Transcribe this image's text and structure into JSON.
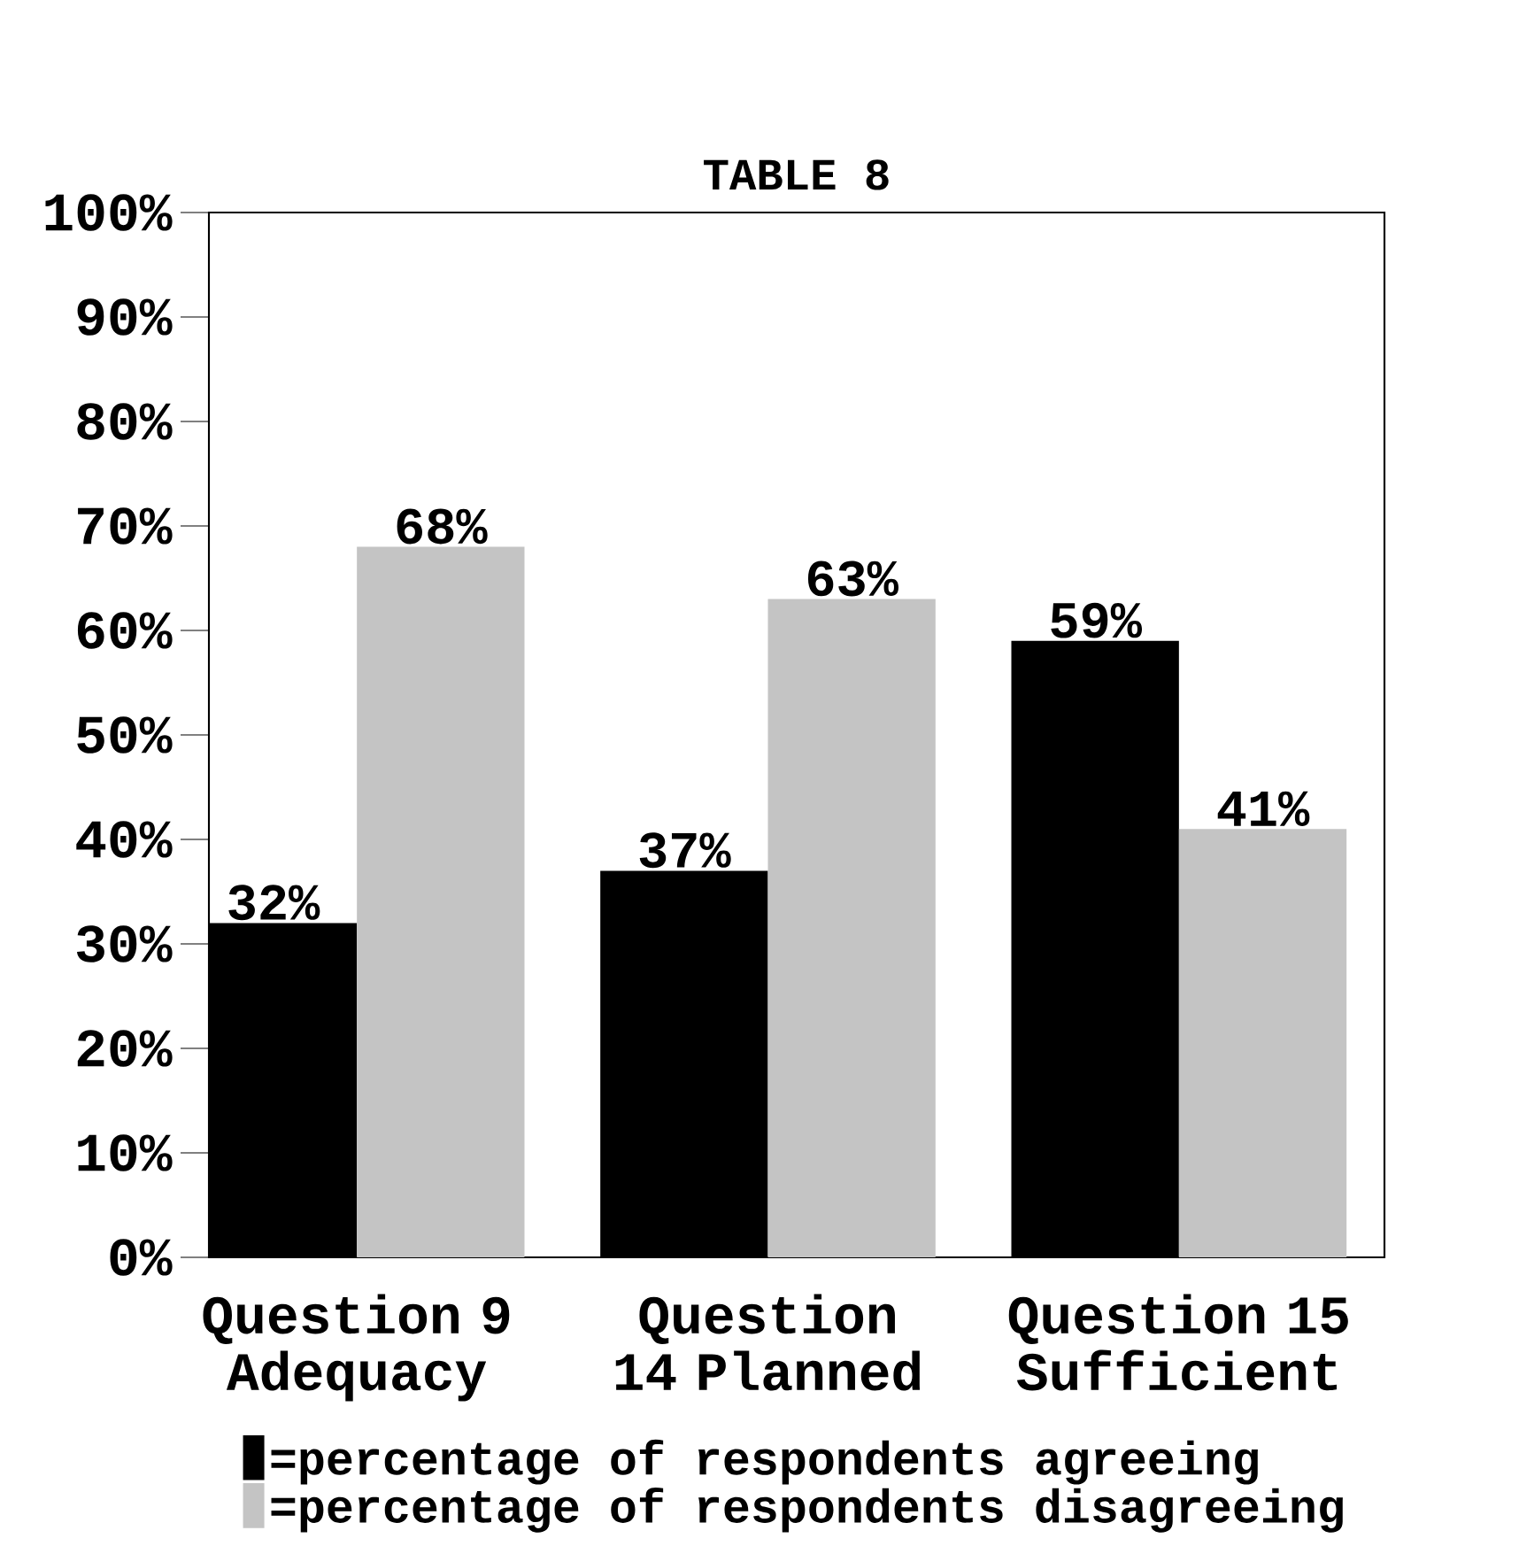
{
  "chart_data": {
    "type": "bar",
    "title": "TABLE 8",
    "categories": [
      "Question 9 Adequacy",
      "Question 14 Planned",
      "Question 15 Sufficient"
    ],
    "series": [
      {
        "name": "=percentage of respondents agreeing",
        "color": "#000000",
        "values": [
          32,
          37,
          59
        ],
        "value_labels": [
          "32%",
          "37%",
          "59%"
        ]
      },
      {
        "name": "=percentage of respondents disagreeing",
        "color": "#c4c4c4",
        "values": [
          68,
          63,
          41
        ],
        "value_labels": [
          "68%",
          "63%",
          "41%"
        ]
      }
    ],
    "ylim": [
      0,
      100
    ],
    "yticks": [
      {
        "value": 0,
        "label": "0%"
      },
      {
        "value": 10,
        "label": "10%"
      },
      {
        "value": 20,
        "label": "20%"
      },
      {
        "value": 30,
        "label": "30%"
      },
      {
        "value": 40,
        "label": "40%"
      },
      {
        "value": 50,
        "label": "50%"
      },
      {
        "value": 60,
        "label": "60%"
      },
      {
        "value": 70,
        "label": "70%"
      },
      {
        "value": 80,
        "label": "80%"
      },
      {
        "value": 90,
        "label": "90%"
      },
      {
        "value": 100,
        "label": "100%"
      }
    ],
    "grid": false,
    "legend": "bottom"
  }
}
